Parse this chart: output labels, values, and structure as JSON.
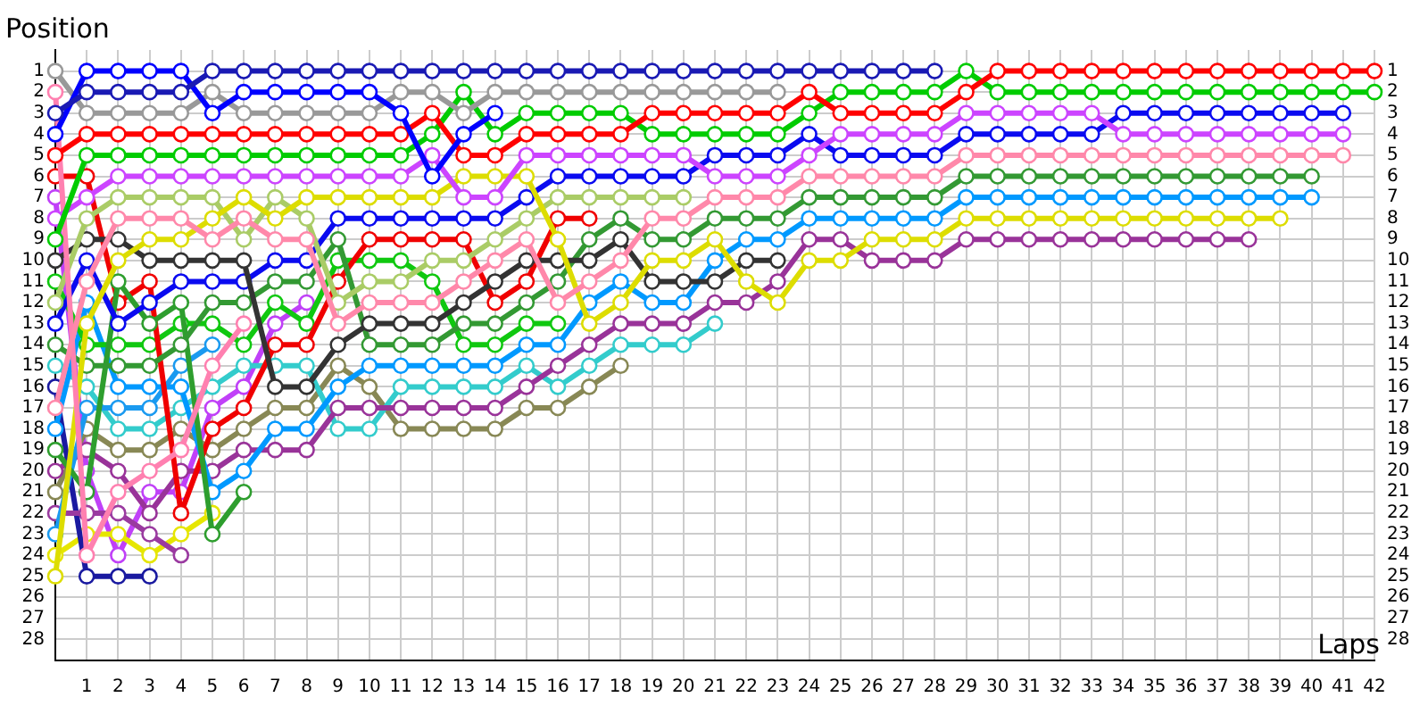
{
  "chart_data": {
    "type": "line",
    "xlabel": "Laps",
    "ylabel": "Position",
    "marker": "circle",
    "grid": true,
    "x": [
      0,
      1,
      2,
      3,
      4,
      5,
      6,
      7,
      8,
      9,
      10,
      11,
      12,
      13,
      14,
      15,
      16,
      17,
      18,
      19,
      20,
      21,
      22,
      23,
      24,
      25,
      26,
      27,
      28,
      29,
      30,
      31,
      32,
      33,
      34,
      35,
      36,
      37,
      38,
      39,
      40,
      41,
      42
    ],
    "xlim": [
      0,
      42
    ],
    "xticks": [
      1,
      2,
      3,
      4,
      5,
      6,
      7,
      8,
      9,
      10,
      11,
      12,
      13,
      14,
      15,
      16,
      17,
      18,
      19,
      20,
      21,
      22,
      23,
      24,
      25,
      26,
      27,
      28,
      29,
      30,
      31,
      32,
      33,
      34,
      35,
      36,
      37,
      38,
      39,
      40,
      41,
      42
    ],
    "ylim": [
      29,
      0
    ],
    "yticks": [
      1,
      2,
      3,
      4,
      5,
      6,
      7,
      8,
      9,
      10,
      11,
      12,
      13,
      14,
      15,
      16,
      17,
      18,
      19,
      20,
      21,
      22,
      23,
      24,
      25,
      26,
      27,
      28
    ],
    "y2lim": [
      29,
      0
    ],
    "y2ticks": [
      1,
      2,
      3,
      4,
      5,
      6,
      7,
      8,
      9,
      10,
      11,
      12,
      13,
      14,
      15,
      16,
      17,
      18,
      19,
      20,
      21,
      22,
      23,
      24,
      25,
      26,
      27,
      28
    ],
    "series": [
      {
        "color": "#1a1ab4",
        "values": [
          3,
          2,
          2,
          2,
          2,
          1,
          1,
          1,
          1,
          1,
          1,
          1,
          1,
          1,
          1,
          1,
          1,
          1,
          1,
          1,
          1,
          1,
          1,
          1,
          1,
          1,
          1,
          1,
          1,
          null,
          null,
          null,
          null,
          null,
          null,
          null,
          null,
          null,
          null,
          null,
          null,
          null,
          null
        ]
      },
      {
        "color": "#0000ff",
        "values": [
          4,
          1,
          1,
          1,
          1,
          3,
          2,
          2,
          2,
          2,
          2,
          3,
          6,
          4,
          3,
          null,
          null,
          null,
          null,
          null,
          null,
          null,
          null,
          null,
          null,
          null,
          null,
          null,
          null,
          null,
          null,
          null,
          null,
          null,
          null,
          null,
          null,
          null,
          null,
          null,
          null,
          null,
          null
        ]
      },
      {
        "color": "#999999",
        "values": [
          1,
          3,
          3,
          3,
          3,
          2,
          3,
          3,
          3,
          3,
          3,
          2,
          2,
          3,
          2,
          2,
          2,
          2,
          2,
          2,
          2,
          2,
          2,
          2,
          null,
          null,
          null,
          null,
          null,
          null,
          null,
          null,
          null,
          null,
          null,
          null,
          null,
          null,
          null,
          null,
          null,
          null,
          null
        ]
      },
      {
        "color": "#ff0000",
        "values": [
          5,
          4,
          4,
          4,
          4,
          4,
          4,
          4,
          4,
          4,
          4,
          4,
          3,
          5,
          5,
          4,
          4,
          4,
          4,
          3,
          3,
          3,
          3,
          3,
          2,
          3,
          3,
          3,
          3,
          2,
          1,
          1,
          1,
          1,
          1,
          1,
          1,
          1,
          1,
          1,
          1,
          1,
          1
        ]
      },
      {
        "color": "#00cc00",
        "values": [
          9,
          5,
          5,
          5,
          5,
          5,
          5,
          5,
          5,
          5,
          5,
          5,
          4,
          2,
          4,
          3,
          3,
          3,
          3,
          4,
          4,
          4,
          4,
          4,
          3,
          2,
          2,
          2,
          2,
          1,
          2,
          2,
          2,
          2,
          2,
          2,
          2,
          2,
          2,
          2,
          2,
          2,
          2
        ]
      },
      {
        "color": "#cc44ff",
        "values": [
          8,
          7,
          6,
          6,
          6,
          6,
          6,
          6,
          6,
          6,
          6,
          6,
          5,
          7,
          7,
          5,
          5,
          5,
          5,
          5,
          5,
          6,
          6,
          6,
          5,
          4,
          4,
          4,
          4,
          3,
          3,
          3,
          3,
          3,
          4,
          4,
          4,
          4,
          4,
          4,
          4,
          4,
          null
        ]
      },
      {
        "color": "#ff88aa",
        "values": [
          17,
          11,
          8,
          8,
          8,
          9,
          8,
          9,
          9,
          13,
          12,
          12,
          12,
          11,
          10,
          9,
          12,
          11,
          10,
          8,
          8,
          7,
          7,
          7,
          6,
          6,
          6,
          6,
          6,
          5,
          5,
          5,
          5,
          5,
          5,
          5,
          5,
          5,
          5,
          5,
          5,
          5,
          null
        ]
      },
      {
        "color": "#ff80b0",
        "values": [
          2,
          24,
          21,
          20,
          19,
          15,
          13,
          null,
          null,
          null,
          null,
          null,
          null,
          null,
          null,
          null,
          null,
          null,
          null,
          null,
          null,
          null,
          null,
          null,
          null,
          null,
          null,
          null,
          null,
          null,
          null,
          null,
          null,
          null,
          null,
          null,
          null,
          null,
          null,
          null,
          null,
          null,
          null
        ]
      },
      {
        "color": "#dddd00",
        "values": [
          25,
          13,
          10,
          9,
          9,
          8,
          7,
          8,
          7,
          7,
          7,
          7,
          7,
          6,
          6,
          6,
          9,
          13,
          12,
          10,
          10,
          9,
          11,
          12,
          10,
          10,
          9,
          9,
          9,
          8,
          8,
          8,
          8,
          8,
          8,
          8,
          8,
          8,
          8,
          8,
          null,
          null,
          null
        ]
      },
      {
        "color": "#aacc66",
        "values": [
          12,
          8,
          7,
          7,
          7,
          7,
          9,
          7,
          8,
          12,
          11,
          11,
          10,
          10,
          9,
          8,
          7,
          7,
          7,
          7,
          7,
          null,
          null,
          null,
          null,
          null,
          null,
          null,
          null,
          null,
          null,
          null,
          null,
          null,
          null,
          null,
          null,
          null,
          null,
          null,
          null,
          null,
          null
        ]
      },
      {
        "color": "#333333",
        "values": [
          10,
          9,
          9,
          10,
          10,
          10,
          10,
          16,
          16,
          14,
          13,
          13,
          13,
          12,
          11,
          10,
          10,
          10,
          9,
          11,
          11,
          11,
          10,
          10,
          null,
          null,
          null,
          null,
          null,
          null,
          null,
          null,
          null,
          null,
          null,
          null,
          null,
          null,
          null,
          null,
          null,
          null,
          null
        ]
      },
      {
        "color": "#0a0af0",
        "values": [
          13,
          10,
          13,
          12,
          11,
          11,
          11,
          10,
          10,
          8,
          8,
          8,
          8,
          8,
          8,
          7,
          6,
          6,
          6,
          6,
          6,
          5,
          5,
          5,
          4,
          5,
          5,
          5,
          5,
          4,
          4,
          4,
          4,
          4,
          3,
          3,
          3,
          3,
          3,
          3,
          3,
          3,
          null
        ]
      },
      {
        "color": "#339933",
        "values": [
          14,
          15,
          15,
          15,
          14,
          12,
          12,
          11,
          11,
          9,
          14,
          14,
          14,
          13,
          13,
          12,
          11,
          9,
          8,
          9,
          9,
          8,
          8,
          8,
          7,
          7,
          7,
          7,
          7,
          6,
          6,
          6,
          6,
          6,
          6,
          6,
          6,
          6,
          6,
          6,
          6,
          null,
          null
        ]
      },
      {
        "color": "#2e9e2e",
        "values": [
          19,
          21,
          11,
          13,
          12,
          23,
          21,
          null,
          null,
          null,
          null,
          null,
          null,
          null,
          null,
          null,
          null,
          null,
          null,
          null,
          null,
          null,
          null,
          null,
          null,
          null,
          null,
          null,
          null,
          null,
          null,
          null,
          null,
          null,
          null,
          null,
          null,
          null,
          null,
          null,
          null,
          null,
          null
        ]
      },
      {
        "color": "#f00000",
        "values": [
          6,
          6,
          12,
          11,
          22,
          18,
          17,
          14,
          14,
          11,
          9,
          9,
          9,
          9,
          12,
          11,
          8,
          8,
          null,
          null,
          null,
          null,
          null,
          null,
          null,
          null,
          null,
          null,
          null,
          null,
          null,
          null,
          null,
          null,
          null,
          null,
          null,
          null,
          null,
          null,
          null,
          null,
          null
        ]
      },
      {
        "color": "#10c810",
        "values": [
          11,
          14,
          14,
          14,
          13,
          13,
          14,
          12,
          13,
          10,
          10,
          10,
          11,
          14,
          14,
          13,
          13,
          null,
          null,
          null,
          null,
          null,
          null,
          null,
          null,
          null,
          null,
          null,
          null,
          null,
          null,
          null,
          null,
          null,
          null,
          null,
          null,
          null,
          null,
          null,
          null,
          null,
          null
        ]
      },
      {
        "color": "#0099ff",
        "values": [
          18,
          12,
          16,
          16,
          16,
          21,
          20,
          18,
          18,
          16,
          15,
          15,
          15,
          15,
          15,
          14,
          14,
          12,
          11,
          12,
          12,
          10,
          9,
          9,
          8,
          8,
          8,
          8,
          8,
          7,
          7,
          7,
          7,
          7,
          7,
          7,
          7,
          7,
          7,
          7,
          7,
          null,
          null
        ]
      },
      {
        "color": "#1a9af0",
        "values": [
          23,
          17,
          17,
          17,
          15,
          14,
          null,
          null,
          null,
          null,
          null,
          null,
          null,
          null,
          null,
          null,
          null,
          null,
          null,
          null,
          null,
          null,
          null,
          null,
          null,
          null,
          null,
          null,
          null,
          null,
          null,
          null,
          null,
          null,
          null,
          null,
          null,
          null,
          null,
          null,
          null,
          null,
          null
        ]
      },
      {
        "color": "#993399",
        "values": [
          20,
          19,
          20,
          22,
          20,
          20,
          19,
          19,
          19,
          17,
          17,
          17,
          17,
          17,
          17,
          16,
          15,
          14,
          13,
          13,
          13,
          12,
          12,
          11,
          9,
          9,
          10,
          10,
          10,
          9,
          9,
          9,
          9,
          9,
          9,
          9,
          9,
          9,
          9,
          null,
          null,
          null,
          null
        ]
      },
      {
        "color": "#9a3aa0",
        "values": [
          22,
          22,
          22,
          23,
          24,
          null,
          null,
          null,
          null,
          null,
          null,
          null,
          null,
          null,
          null,
          null,
          null,
          null,
          null,
          null,
          null,
          null,
          null,
          null,
          null,
          null,
          null,
          null,
          null,
          null,
          null,
          null,
          null,
          null,
          null,
          null,
          null,
          null,
          null,
          null,
          null,
          null,
          null
        ]
      },
      {
        "color": "#33cccc",
        "values": [
          15,
          16,
          18,
          18,
          17,
          16,
          15,
          15,
          15,
          18,
          18,
          16,
          16,
          16,
          16,
          15,
          16,
          15,
          14,
          14,
          14,
          13,
          null,
          null,
          null,
          null,
          null,
          null,
          null,
          null,
          null,
          null,
          null,
          null,
          null,
          null,
          null,
          null,
          null,
          null,
          null,
          null,
          null
        ]
      },
      {
        "color": "#888855",
        "values": [
          21,
          18,
          19,
          19,
          18,
          19,
          18,
          17,
          17,
          15,
          16,
          18,
          18,
          18,
          18,
          17,
          17,
          16,
          15,
          null,
          null,
          null,
          null,
          null,
          null,
          null,
          null,
          null,
          null,
          null,
          null,
          null,
          null,
          null,
          null,
          null,
          null,
          null,
          null,
          null,
          null,
          null,
          null
        ]
      },
      {
        "color": "#1a1aa0",
        "values": [
          16,
          25,
          25,
          25,
          null,
          null,
          null,
          null,
          null,
          null,
          null,
          null,
          null,
          null,
          null,
          null,
          null,
          null,
          null,
          null,
          null,
          null,
          null,
          null,
          null,
          null,
          null,
          null,
          null,
          null,
          null,
          null,
          null,
          null,
          null,
          null,
          null,
          null,
          null,
          null,
          null,
          null,
          null
        ]
      },
      {
        "color": "#e6e600",
        "values": [
          24,
          23,
          23,
          24,
          23,
          22,
          null,
          null,
          null,
          null,
          null,
          null,
          null,
          null,
          null,
          null,
          null,
          null,
          null,
          null,
          null,
          null,
          null,
          null,
          null,
          null,
          null,
          null,
          null,
          null,
          null,
          null,
          null,
          null,
          null,
          null,
          null,
          null,
          null,
          null,
          null,
          null,
          null
        ]
      },
      {
        "color": "#c040f8",
        "values": [
          7,
          20,
          24,
          21,
          21,
          17,
          16,
          13,
          12,
          null,
          null,
          null,
          null,
          null,
          null,
          null,
          null,
          null,
          null,
          null,
          null,
          null,
          null,
          null,
          null,
          null,
          null,
          null,
          null,
          null,
          null,
          null,
          null,
          null,
          null,
          null,
          null,
          null,
          null,
          null,
          null,
          null,
          null
        ]
      }
    ]
  }
}
